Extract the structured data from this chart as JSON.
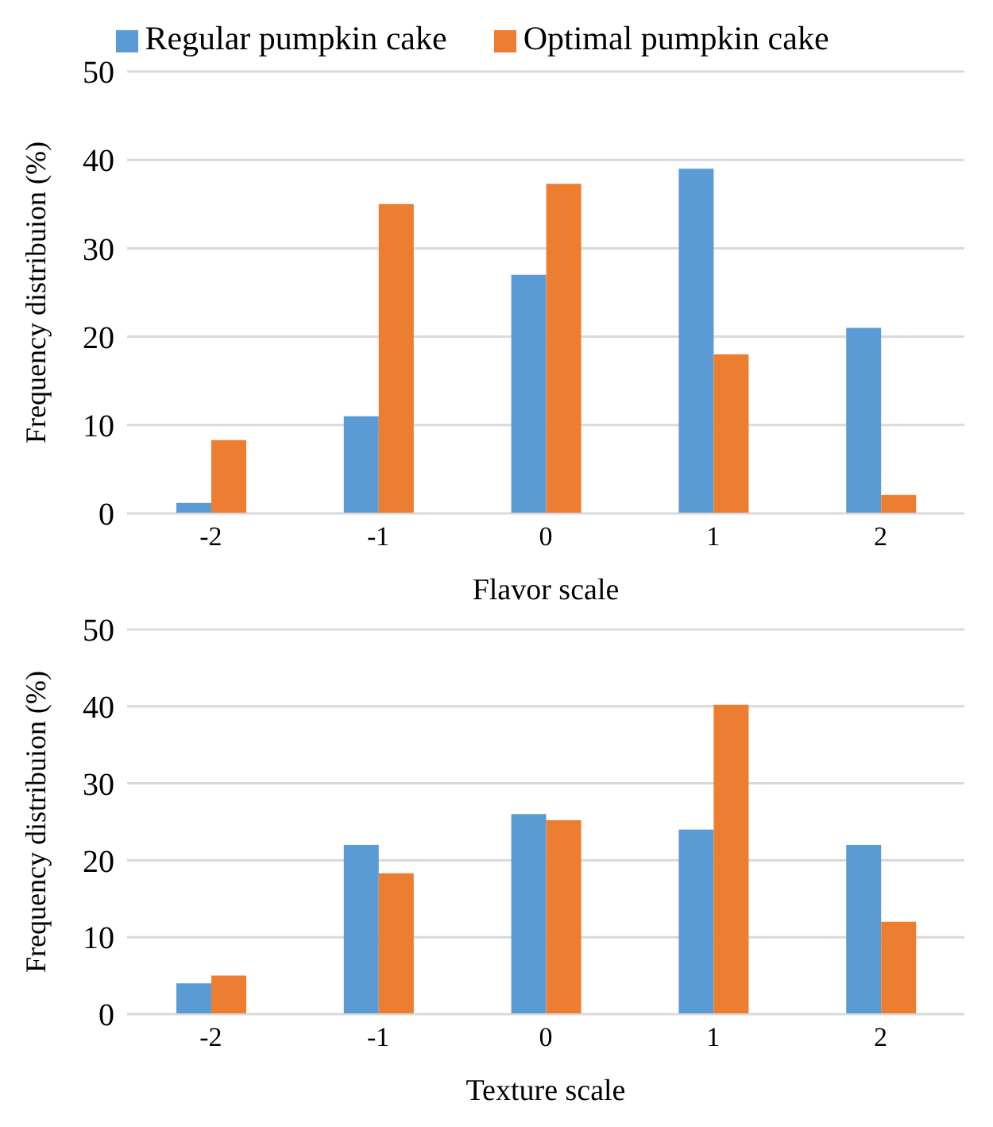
{
  "chart_data": [
    {
      "type": "bar",
      "categories": [
        "-2",
        "-1",
        "0",
        "1",
        "2"
      ],
      "xlabel": "Flavor scale",
      "ylabel": "Frequency distribuion (%)",
      "ylim": [
        0,
        50
      ],
      "yticks": [
        0,
        10,
        20,
        30,
        40,
        50
      ],
      "grid": "y",
      "legend": "top",
      "series": [
        {
          "name": "Regular pumpkin cake",
          "color": "#5b9bd5",
          "values": [
            1.2,
            11,
            27,
            39,
            21
          ]
        },
        {
          "name": "Optimal pumpkin cake",
          "color": "#ed7d31",
          "values": [
            8.3,
            35,
            37.3,
            18,
            2.1
          ]
        }
      ]
    },
    {
      "type": "bar",
      "categories": [
        "-2",
        "-1",
        "0",
        "1",
        "2"
      ],
      "xlabel": "Texture scale",
      "ylabel": "Frequency distribuion (%)",
      "ylim": [
        0,
        50
      ],
      "yticks": [
        0,
        10,
        20,
        30,
        40,
        50
      ],
      "grid": "y",
      "series": [
        {
          "color": "#5b9bd5",
          "values": [
            4,
            22,
            26,
            24,
            22
          ]
        },
        {
          "color": "#ed7d31",
          "values": [
            5,
            18.3,
            25.2,
            40.2,
            12
          ]
        }
      ]
    }
  ]
}
